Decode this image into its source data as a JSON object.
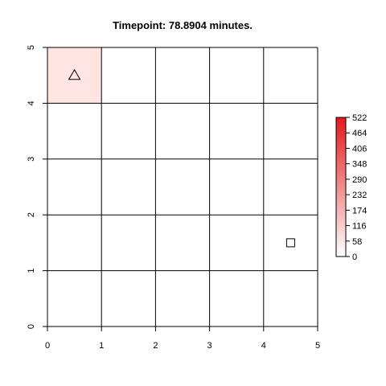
{
  "chart_data": {
    "type": "heatmap",
    "title": "Timepoint:  78.8904  minutes.",
    "xlabel": "",
    "ylabel": "",
    "xlim": [
      0,
      5
    ],
    "ylim": [
      0,
      5
    ],
    "x_ticks": [
      "0",
      "1",
      "2",
      "3",
      "4",
      "5"
    ],
    "y_ticks": [
      "0",
      "1",
      "2",
      "3",
      "4",
      "5"
    ],
    "grid": true,
    "cells": [
      {
        "x": [
          0,
          1
        ],
        "y": [
          4,
          5
        ],
        "value": 58,
        "color": "#FFE4E4"
      }
    ],
    "markers": [
      {
        "shape": "triangle",
        "x": 0.5,
        "y": 4.5
      },
      {
        "shape": "square",
        "x": 4.5,
        "y": 1.5
      }
    ],
    "colorbar": {
      "ticks": [
        "0",
        "58",
        "116",
        "174",
        "232",
        "290",
        "348",
        "406",
        "464",
        "522"
      ],
      "range": [
        0,
        522
      ],
      "low_color": "#FFFFFF",
      "high_color": "#E41A1C",
      "legend_position": "right"
    }
  }
}
